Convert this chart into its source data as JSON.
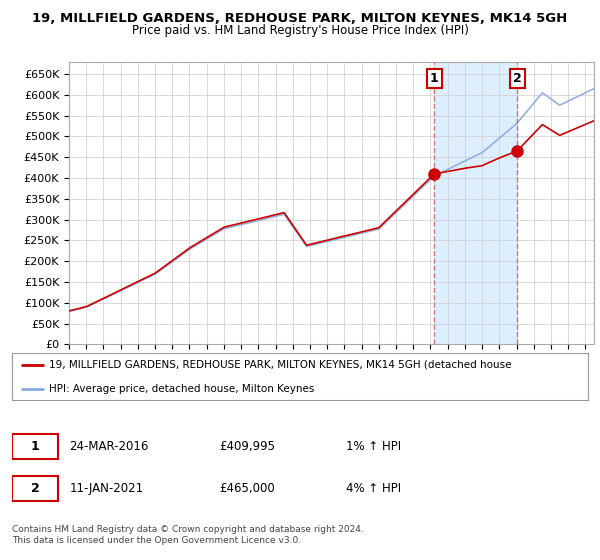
{
  "title": "19, MILLFIELD GARDENS, REDHOUSE PARK, MILTON KEYNES, MK14 5GH",
  "subtitle": "Price paid vs. HM Land Registry's House Price Index (HPI)",
  "ylim": [
    0,
    680000
  ],
  "yticks": [
    0,
    50000,
    100000,
    150000,
    200000,
    250000,
    300000,
    350000,
    400000,
    450000,
    500000,
    550000,
    600000,
    650000
  ],
  "ytick_labels": [
    "£0",
    "£50K",
    "£100K",
    "£150K",
    "£200K",
    "£250K",
    "£300K",
    "£350K",
    "£400K",
    "£450K",
    "£500K",
    "£550K",
    "£600K",
    "£650K"
  ],
  "hpi_color": "#88aadd",
  "price_color": "#cc0000",
  "shade_color": "#ddeeff",
  "plot_bg": "#ffffff",
  "sale1_date": "24-MAR-2016",
  "sale1_price": "£409,995",
  "sale1_hpi": "1% ↑ HPI",
  "sale1_label": "1",
  "sale2_date": "11-JAN-2021",
  "sale2_price": "£465,000",
  "sale2_hpi": "4% ↑ HPI",
  "sale2_label": "2",
  "legend_line1": "19, MILLFIELD GARDENS, REDHOUSE PARK, MILTON KEYNES, MK14 5GH (detached house",
  "legend_line2": "HPI: Average price, detached house, Milton Keynes",
  "footer": "Contains HM Land Registry data © Crown copyright and database right 2024.\nThis data is licensed under the Open Government Licence v3.0.",
  "vline1_x": 2016.23,
  "vline2_x": 2021.03,
  "marker1_x": 2016.23,
  "marker1_y": 409995,
  "marker2_x": 2021.03,
  "marker2_y": 465000,
  "xlim_left": 1995,
  "xlim_right": 2025.5
}
